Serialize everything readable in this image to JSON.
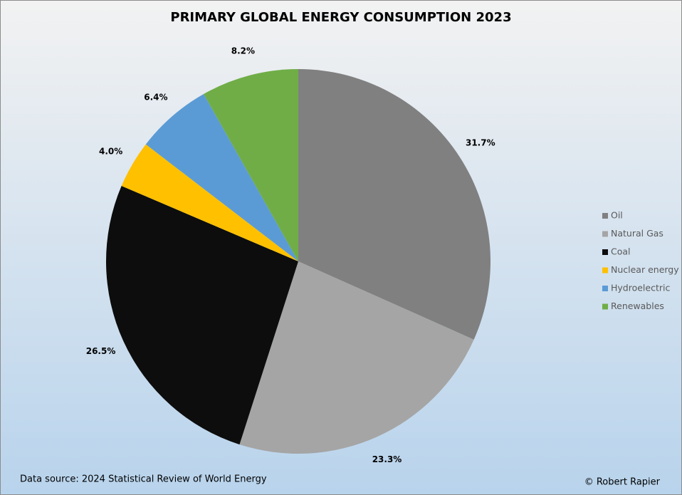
{
  "chart_data": {
    "type": "pie",
    "title": "PRIMARY GLOBAL ENERGY CONSUMPTION 2023",
    "categories": [
      "Oil",
      "Natural Gas",
      "Coal",
      "Nuclear energy",
      "Hydroelectric",
      "Renewables"
    ],
    "values": [
      31.7,
      23.3,
      26.5,
      4.0,
      6.4,
      8.2
    ],
    "value_labels": [
      "31.7%",
      "23.3%",
      "26.5%",
      "4.0%",
      "6.4%",
      "8.2%"
    ],
    "colors": [
      "#808080",
      "#a5a5a5",
      "#0d0d0d",
      "#ffc000",
      "#5b9bd5",
      "#70ad47"
    ],
    "legend": "right",
    "source": "Data source: 2024 Statistical Review of World Energy",
    "credit": "© Robert Rapier"
  }
}
